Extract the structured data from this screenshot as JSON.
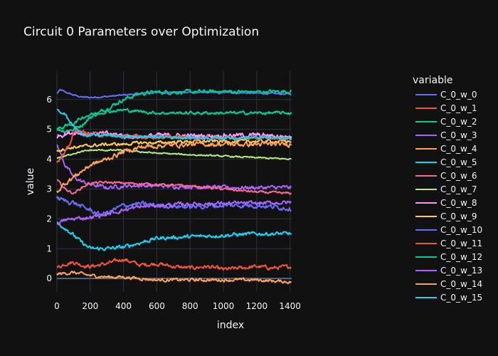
{
  "chart_data": {
    "type": "line",
    "title": "Circuit 0 Parameters over Optimization",
    "xlabel": "index",
    "ylabel": "value",
    "xlim": [
      0,
      1410
    ],
    "ylim": [
      -0.45,
      6.95
    ],
    "xticks": [
      0,
      200,
      400,
      600,
      800,
      1000,
      1200,
      1400
    ],
    "yticks": [
      0,
      1,
      2,
      3,
      4,
      5,
      6
    ],
    "grid": true,
    "legend_title": "variable",
    "legend_position": "right",
    "series": [
      {
        "name": "C_0_w_0",
        "color": "#636efa",
        "noise": 0.02,
        "x": [
          0,
          20,
          50,
          100,
          150,
          200,
          300,
          400,
          500,
          600,
          800,
          1000,
          1200,
          1410
        ],
        "y": [
          6.2,
          6.32,
          6.25,
          6.15,
          6.08,
          6.07,
          6.1,
          6.15,
          6.2,
          6.24,
          6.25,
          6.24,
          6.21,
          6.18
        ]
      },
      {
        "name": "C_0_w_1",
        "color": "#EF553B",
        "noise": 0.05,
        "x": [
          0,
          50,
          100,
          150,
          200,
          300,
          400,
          500,
          600,
          700,
          800,
          900,
          1000,
          1100,
          1200,
          1300,
          1410
        ],
        "y": [
          0.35,
          0.5,
          0.55,
          0.45,
          0.4,
          0.5,
          0.65,
          0.45,
          0.5,
          0.4,
          0.35,
          0.4,
          0.3,
          0.35,
          0.4,
          0.35,
          0.4
        ]
      },
      {
        "name": "C_0_w_2",
        "color": "#00cc96",
        "noise": 0.05,
        "x": [
          0,
          50,
          100,
          150,
          200,
          300,
          400,
          500,
          600,
          800,
          1000,
          1200,
          1410
        ],
        "y": [
          5.0,
          4.95,
          5.0,
          5.15,
          5.4,
          5.7,
          6.0,
          6.2,
          6.25,
          6.25,
          6.27,
          6.25,
          6.28
        ]
      },
      {
        "name": "C_0_w_3",
        "color": "#ab63fa",
        "noise": 0.05,
        "x": [
          0,
          50,
          100,
          150,
          200,
          300,
          400,
          500,
          600,
          800,
          1000,
          1200,
          1410
        ],
        "y": [
          4.5,
          3.8,
          3.4,
          3.25,
          3.15,
          3.05,
          3.1,
          3.12,
          3.1,
          3.08,
          3.05,
          3.05,
          3.05
        ]
      },
      {
        "name": "C_0_w_4",
        "color": "#FFA15A",
        "noise": 0.04,
        "x": [
          0,
          100,
          200,
          300,
          400,
          500,
          600,
          800,
          1000,
          1200,
          1410
        ],
        "y": [
          0.15,
          0.2,
          0.1,
          0.05,
          0.05,
          0.0,
          -0.05,
          -0.05,
          -0.05,
          -0.05,
          -0.12
        ]
      },
      {
        "name": "C_0_w_5",
        "color": "#19d3f3",
        "noise": 0.05,
        "x": [
          0,
          50,
          100,
          150,
          200,
          300,
          400,
          500,
          600,
          800,
          1000,
          1200,
          1410
        ],
        "y": [
          1.85,
          1.7,
          1.45,
          1.2,
          1.0,
          1.0,
          1.05,
          1.2,
          1.35,
          1.4,
          1.45,
          1.5,
          1.5
        ]
      },
      {
        "name": "C_0_w_6",
        "color": "#FF6692",
        "noise": 0.03,
        "x": [
          0,
          50,
          100,
          150,
          200,
          300,
          400,
          500,
          600,
          800,
          1000,
          1200,
          1410
        ],
        "y": [
          3.3,
          3.0,
          2.85,
          3.05,
          3.2,
          3.22,
          3.2,
          3.18,
          3.15,
          3.1,
          3.0,
          2.9,
          2.85
        ]
      },
      {
        "name": "C_0_w_7",
        "color": "#B6E880",
        "noise": 0.02,
        "x": [
          0,
          50,
          100,
          200,
          300,
          400,
          500,
          600,
          800,
          1000,
          1200,
          1410
        ],
        "y": [
          4.05,
          4.1,
          4.2,
          4.3,
          4.3,
          4.3,
          4.25,
          4.2,
          4.15,
          4.1,
          4.05,
          4.0
        ]
      },
      {
        "name": "C_0_w_8",
        "color": "#FF97FF",
        "noise": 0.06,
        "x": [
          0,
          100,
          200,
          300,
          400,
          500,
          600,
          800,
          1000,
          1200,
          1410
        ],
        "y": [
          4.8,
          4.9,
          4.85,
          4.85,
          4.8,
          4.75,
          4.8,
          4.78,
          4.8,
          4.8,
          4.75
        ]
      },
      {
        "name": "C_0_w_9",
        "color": "#FECB52",
        "noise": 0.04,
        "x": [
          0,
          50,
          100,
          200,
          300,
          400,
          500,
          600,
          800,
          1000,
          1200,
          1410
        ],
        "y": [
          4.3,
          4.35,
          4.4,
          4.45,
          4.5,
          4.5,
          4.55,
          4.55,
          4.6,
          4.6,
          4.6,
          4.6
        ]
      },
      {
        "name": "C_0_w_10",
        "color": "#636efa",
        "noise": 0.06,
        "x": [
          0,
          50,
          100,
          150,
          200,
          250,
          300,
          400,
          500,
          600,
          800,
          1000,
          1200,
          1410
        ],
        "y": [
          2.7,
          2.6,
          2.55,
          2.4,
          2.3,
          2.15,
          2.2,
          2.45,
          2.5,
          2.45,
          2.4,
          2.45,
          2.45,
          2.35
        ]
      },
      {
        "name": "C_0_w_11",
        "color": "#EF553B",
        "noise": 0.05,
        "x": [
          0,
          50,
          80,
          100,
          120,
          150,
          200,
          300,
          400,
          600,
          800,
          1000,
          1200,
          1410
        ],
        "y": [
          3.9,
          4.2,
          4.55,
          4.85,
          5.0,
          4.9,
          4.85,
          4.8,
          4.75,
          4.75,
          4.72,
          4.72,
          4.7,
          4.7
        ]
      },
      {
        "name": "C_0_w_12",
        "color": "#00cc96",
        "noise": 0.04,
        "x": [
          0,
          50,
          100,
          150,
          200,
          300,
          400,
          500,
          600,
          800,
          1000,
          1200,
          1410
        ],
        "y": [
          5.0,
          5.1,
          5.2,
          5.4,
          5.5,
          5.6,
          5.65,
          5.6,
          5.55,
          5.55,
          5.55,
          5.55,
          5.55
        ]
      },
      {
        "name": "C_0_w_13",
        "color": "#ab63fa",
        "noise": 0.05,
        "x": [
          0,
          50,
          100,
          200,
          300,
          400,
          500,
          600,
          800,
          1000,
          1200,
          1410
        ],
        "y": [
          1.85,
          1.95,
          2.0,
          2.05,
          2.15,
          2.3,
          2.4,
          2.45,
          2.5,
          2.52,
          2.52,
          2.55
        ]
      },
      {
        "name": "C_0_w_14",
        "color": "#FFA15A",
        "noise": 0.06,
        "x": [
          0,
          50,
          100,
          150,
          200,
          300,
          400,
          500,
          600,
          800,
          1000,
          1200,
          1410
        ],
        "y": [
          2.9,
          3.2,
          3.4,
          3.6,
          3.8,
          4.0,
          4.25,
          4.4,
          4.45,
          4.5,
          4.5,
          4.5,
          4.5
        ]
      },
      {
        "name": "C_0_w_15",
        "color": "#19d3f3",
        "noise": 0.04,
        "x": [
          0,
          50,
          100,
          150,
          200,
          300,
          400,
          500,
          600,
          800,
          1000,
          1200,
          1410
        ],
        "y": [
          5.7,
          5.5,
          5.1,
          4.85,
          4.8,
          4.8,
          4.75,
          4.75,
          4.75,
          4.72,
          4.72,
          4.72,
          4.7
        ]
      }
    ]
  }
}
